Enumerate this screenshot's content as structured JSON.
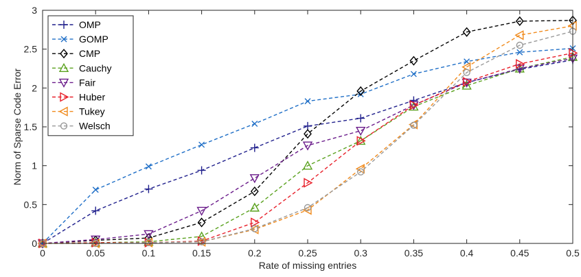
{
  "chart_data": {
    "type": "line",
    "title": "",
    "xlabel": "Rate of missing entries",
    "ylabel": "Norm of Sparse Code Error",
    "xlim": [
      0,
      0.5
    ],
    "ylim": [
      0,
      3
    ],
    "x": [
      0,
      0.05,
      0.1,
      0.15,
      0.2,
      0.25,
      0.3,
      0.35,
      0.4,
      0.45,
      0.5
    ],
    "x_ticks": [
      "0",
      "0.05",
      "0.1",
      "0.15",
      "0.2",
      "0.25",
      "0.3",
      "0.35",
      "0.4",
      "0.45",
      "0.5"
    ],
    "y_ticks": [
      "0",
      "0.5",
      "1",
      "1.5",
      "2",
      "2.5",
      "3"
    ],
    "grid": false,
    "legend_position": "top-left",
    "series": [
      {
        "name": "OMP",
        "color": "#1f1f8c",
        "marker": "plus",
        "values": [
          0,
          0.42,
          0.7,
          0.94,
          1.23,
          1.51,
          1.61,
          1.84,
          2.07,
          2.24,
          2.36
        ]
      },
      {
        "name": "GOMP",
        "color": "#1f6fc7",
        "marker": "x",
        "values": [
          0,
          0.69,
          0.99,
          1.27,
          1.54,
          1.83,
          1.92,
          2.18,
          2.34,
          2.46,
          2.51
        ]
      },
      {
        "name": "CMP",
        "color": "#000000",
        "marker": "diamond",
        "values": [
          0,
          0.04,
          0.07,
          0.27,
          0.67,
          1.41,
          1.96,
          2.35,
          2.72,
          2.86,
          2.87
        ]
      },
      {
        "name": "Cauchy",
        "color": "#5aa11e",
        "marker": "triangle-up",
        "values": [
          0,
          0.01,
          0.02,
          0.09,
          0.46,
          1.0,
          1.32,
          1.76,
          2.03,
          2.25,
          2.4
        ]
      },
      {
        "name": "Fair",
        "color": "#6a1b8a",
        "marker": "triangle-down",
        "values": [
          0,
          0.05,
          0.12,
          0.42,
          0.84,
          1.26,
          1.45,
          1.78,
          2.07,
          2.25,
          2.38
        ]
      },
      {
        "name": "Huber",
        "color": "#e8202a",
        "marker": "triangle-right",
        "values": [
          0,
          0.01,
          0.01,
          0.03,
          0.27,
          0.78,
          1.32,
          1.78,
          2.08,
          2.31,
          2.45
        ]
      },
      {
        "name": "Tukey",
        "color": "#f08a1c",
        "marker": "triangle-left",
        "values": [
          0,
          0.0,
          0.01,
          0.02,
          0.18,
          0.43,
          0.96,
          1.53,
          2.27,
          2.68,
          2.8
        ]
      },
      {
        "name": "Welsch",
        "color": "#999999",
        "marker": "circle",
        "values": [
          0,
          0.0,
          0.01,
          0.02,
          0.19,
          0.46,
          0.92,
          1.52,
          2.2,
          2.55,
          2.73
        ]
      }
    ]
  }
}
